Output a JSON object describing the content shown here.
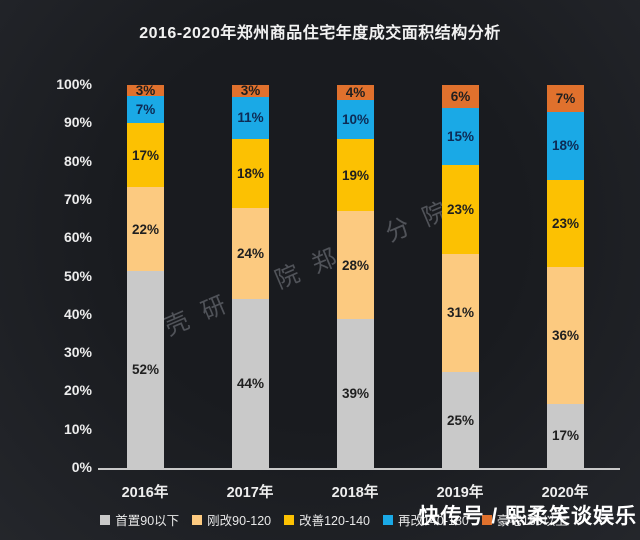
{
  "title": "2016-2020年郑州商品住宅年度成交面积结构分析",
  "watermarks": {
    "diagonal": "壳研究院郑州分院",
    "platform": "快传号 / 熙柔笑谈娱乐"
  },
  "chart_data": {
    "type": "bar",
    "stacked": true,
    "percent_stacked": true,
    "title": "2016-2020年郑州商品住宅年度成交面积结构分析",
    "categories": [
      "2016年",
      "2017年",
      "2018年",
      "2019年",
      "2020年"
    ],
    "series": [
      {
        "name": "首置90以下",
        "color": "#c9c9c9",
        "label_color": "#1f1f1f",
        "values": [
          52,
          44,
          39,
          25,
          17
        ]
      },
      {
        "name": "刚改90-120",
        "color": "#fcca80",
        "label_color": "#1f1f1f",
        "values": [
          22,
          24,
          28,
          31,
          36
        ]
      },
      {
        "name": "改善120-140",
        "color": "#fcc102",
        "label_color": "#1f1f1f",
        "values": [
          17,
          18,
          19,
          23,
          23
        ]
      },
      {
        "name": "再改140-180",
        "color": "#1aa9e6",
        "label_color": "#0d2b55",
        "values": [
          7,
          11,
          10,
          15,
          18
        ]
      },
      {
        "name": "豪宅180以上",
        "color": "#e0712d",
        "label_color": "#1f1f1f",
        "values": [
          3,
          3,
          4,
          6,
          7
        ]
      }
    ],
    "value_suffix": "%",
    "ylim": [
      0,
      100
    ],
    "yticks": [
      "0%",
      "10%",
      "20%",
      "30%",
      "40%",
      "50%",
      "60%",
      "70%",
      "80%",
      "90%",
      "100%"
    ],
    "xlabel": "",
    "ylabel": "",
    "grid": false,
    "legend_position": "bottom"
  }
}
